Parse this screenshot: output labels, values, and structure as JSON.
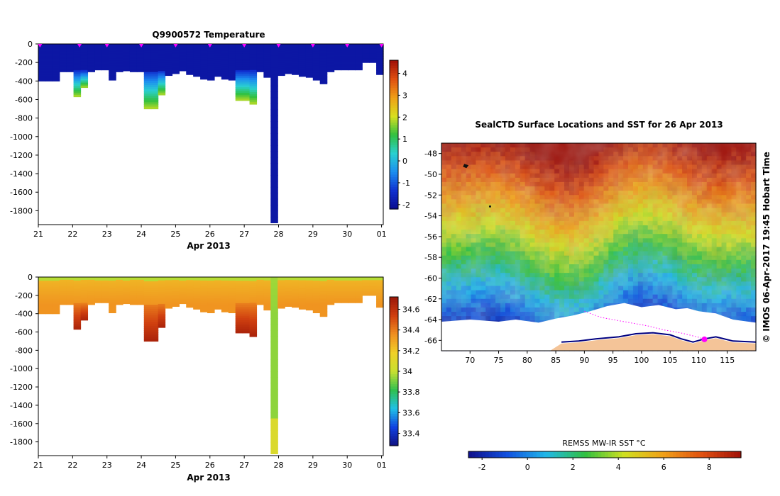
{
  "colors": {
    "temp_scale": [
      "#0a0a8c",
      "#1030d0",
      "#1c8ef0",
      "#2ad0d0",
      "#30c040",
      "#d8e020",
      "#f0a018",
      "#e05010",
      "#a01008"
    ],
    "sal_scale": [
      "#101080",
      "#1040e0",
      "#20c0e8",
      "#30c050",
      "#c8e030",
      "#f0d028",
      "#f09020",
      "#d04010",
      "#9c1808"
    ],
    "sst_scale": [
      "#10108a",
      "#1050e0",
      "#20b8e8",
      "#30c040",
      "#d0e020",
      "#f0a018",
      "#e05010",
      "#a01008"
    ],
    "land": "#f4c498",
    "coast": "#000080",
    "ice": "#ffffff",
    "marker": "#ff00ff"
  },
  "chart_data": [
    {
      "type": "heatmap",
      "name": "temperature-section",
      "title": "Q9900572  Temperature",
      "xlabel": "Apr 2013",
      "xticks": [
        "21",
        "22",
        "23",
        "24",
        "25",
        "26",
        "27",
        "28",
        "29",
        "30",
        "01"
      ],
      "xlim": [
        21,
        31.05
      ],
      "ylim": [
        0,
        -1950
      ],
      "yticks": [
        "0",
        "-200",
        "-400",
        "-600",
        "-800",
        "-1000",
        "-1200",
        "-1400",
        "-1600",
        "-1800"
      ],
      "profile_days": [
        21.05,
        22.2,
        23.0,
        24.0,
        25.0,
        26.0,
        27.0,
        28.0,
        29.0,
        30.0,
        31.0
      ],
      "colorbar": {
        "ticks": [
          "-2",
          "-1",
          "0",
          "1",
          "2",
          "3",
          "4"
        ],
        "range": [
          -2.2,
          4.6
        ]
      }
    },
    {
      "type": "heatmap",
      "name": "salinity-section",
      "title": "",
      "xlabel": "Apr 2013",
      "xticks": [
        "21",
        "22",
        "23",
        "24",
        "25",
        "26",
        "27",
        "28",
        "29",
        "30",
        "01"
      ],
      "xlim": [
        21,
        31.05
      ],
      "ylim": [
        0,
        -1950
      ],
      "yticks": [
        "0",
        "-200",
        "-400",
        "-600",
        "-800",
        "-1000",
        "-1200",
        "-1400",
        "-1600",
        "-1800"
      ],
      "colorbar": {
        "ticks": [
          "33.4",
          "33.6",
          "33.8",
          "34",
          "34.2",
          "34.4",
          "34.6"
        ],
        "range": [
          33.28,
          34.72
        ]
      }
    },
    {
      "type": "heatmap",
      "name": "sst-map",
      "title": "SealCTD Surface Locations and SST for 26 Apr 2013",
      "xticks": [
        "70",
        "75",
        "80",
        "85",
        "90",
        "95",
        "100",
        "105",
        "110",
        "115"
      ],
      "xlim": [
        65,
        120
      ],
      "yticks": [
        "-48",
        "-50",
        "-52",
        "-54",
        "-56",
        "-58",
        "-60",
        "-62",
        "-64",
        "-66"
      ],
      "ylim": [
        -67,
        -47
      ],
      "side_label": "© IMOS 06-Apr-2017 19:45 Hobart Time",
      "colorbar": {
        "label": "REMSS MW-IR SST °C",
        "ticks": [
          "-2",
          "0",
          "2",
          "4",
          "6",
          "8"
        ],
        "range": [
          -2.6,
          9.4
        ]
      },
      "seal_track": [
        [
          90,
          -63.2
        ],
        [
          93,
          -63.8
        ],
        [
          97,
          -64.2
        ],
        [
          101,
          -64.6
        ],
        [
          104,
          -65.0
        ],
        [
          107,
          -65.3
        ],
        [
          110,
          -65.7
        ],
        [
          111,
          -65.9
        ]
      ],
      "seal_position": [
        111,
        -65.9
      ]
    }
  ]
}
